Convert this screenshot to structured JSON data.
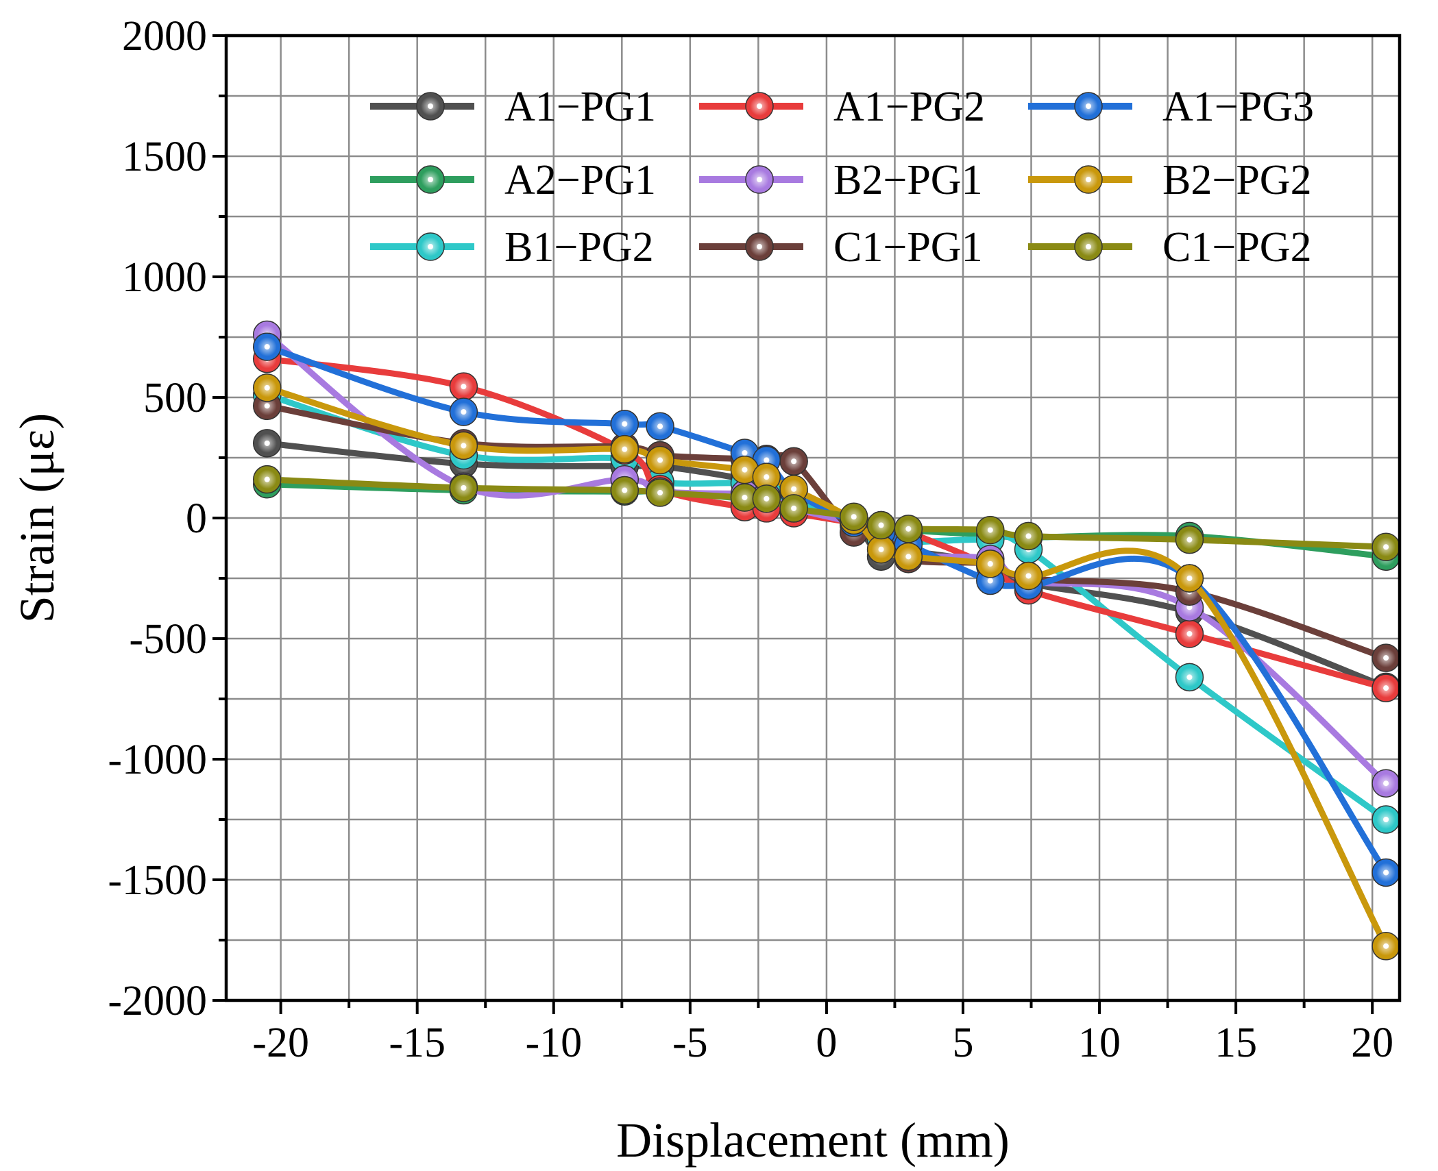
{
  "chart_data": {
    "type": "line",
    "title": "",
    "xlabel": "Displacement (mm)",
    "ylabel": "Strain (με)",
    "xlim": [
      -22,
      21
    ],
    "ylim": [
      -2000,
      2000
    ],
    "xticks": [
      -20,
      -15,
      -10,
      -5,
      0,
      5,
      10,
      15,
      20
    ],
    "yticks": [
      -2000,
      -1500,
      -1000,
      -500,
      0,
      500,
      1000,
      1500,
      2000
    ],
    "grid": true,
    "legend_position": "top",
    "series": [
      {
        "name": "A1−PG1",
        "color": "#505050",
        "x": [
          -20.5,
          -13.3,
          -7.4,
          -6.1,
          -3.0,
          -2.2,
          -1.2,
          1.0,
          2.0,
          3.0,
          6.0,
          7.4,
          13.3,
          20.5
        ],
        "y": [
          310,
          225,
          215,
          215,
          160,
          120,
          90,
          -30,
          -160,
          -140,
          -190,
          -270,
          -390,
          -700
        ]
      },
      {
        "name": "A2−PG1",
        "color": "#2e9e5e",
        "x": [
          -20.5,
          -13.3,
          -7.4,
          -6.1,
          -3.0,
          -2.2,
          -1.2,
          1.0,
          2.0,
          3.0,
          6.0,
          7.4,
          13.3,
          20.5
        ],
        "y": [
          140,
          115,
          110,
          110,
          80,
          70,
          40,
          0,
          -30,
          -50,
          -70,
          -80,
          -75,
          -160
        ]
      },
      {
        "name": "B1−PG2",
        "color": "#2ec8c8",
        "x": [
          -20.5,
          -13.3,
          -7.4,
          -6.1,
          -3.0,
          -2.2,
          -1.2,
          1.0,
          2.0,
          3.0,
          6.0,
          7.4,
          13.3,
          20.5
        ],
        "y": [
          510,
          260,
          245,
          150,
          145,
          120,
          70,
          -20,
          -90,
          -100,
          -90,
          -130,
          -660,
          -1250
        ]
      },
      {
        "name": "A1−PG2",
        "color": "#e83c3c",
        "x": [
          -20.5,
          -13.3,
          -7.4,
          -6.1,
          -3.0,
          -2.2,
          -1.2,
          1.0,
          2.0,
          3.0,
          6.0,
          7.4,
          13.3,
          20.5
        ],
        "y": [
          660,
          545,
          280,
          120,
          45,
          40,
          20,
          -20,
          -40,
          -60,
          -200,
          -300,
          -480,
          -705
        ]
      },
      {
        "name": "B2−PG1",
        "color": "#a87ae0",
        "x": [
          -20.5,
          -13.3,
          -7.4,
          -6.1,
          -3.0,
          -2.2,
          -1.2,
          1.0,
          2.0,
          3.0,
          6.0,
          7.4,
          13.3,
          20.5
        ],
        "y": [
          760,
          130,
          160,
          110,
          100,
          90,
          40,
          -20,
          -60,
          -150,
          -170,
          -260,
          -370,
          -1100
        ]
      },
      {
        "name": "C1−PG1",
        "color": "#6b3f3a",
        "x": [
          -20.5,
          -13.3,
          -7.4,
          -6.1,
          -3.0,
          -2.2,
          -1.2,
          1.0,
          2.0,
          3.0,
          6.0,
          7.4,
          13.3,
          20.5
        ],
        "y": [
          465,
          310,
          295,
          260,
          245,
          245,
          235,
          -60,
          -40,
          -170,
          -190,
          -250,
          -305,
          -580
        ]
      },
      {
        "name": "A1−PG3",
        "color": "#2270d8",
        "x": [
          -20.5,
          -13.3,
          -7.4,
          -6.1,
          -3.0,
          -2.2,
          -1.2,
          1.0,
          2.0,
          3.0,
          6.0,
          7.4,
          13.3,
          20.5
        ],
        "y": [
          710,
          440,
          390,
          380,
          270,
          240,
          110,
          -20,
          -60,
          -110,
          -260,
          -280,
          -250,
          -1470
        ]
      },
      {
        "name": "B2−PG2",
        "color": "#c9980c",
        "x": [
          -20.5,
          -13.3,
          -7.4,
          -6.1,
          -3.0,
          -2.2,
          -1.2,
          1.0,
          2.0,
          3.0,
          6.0,
          7.4,
          13.3,
          20.5
        ],
        "y": [
          540,
          300,
          285,
          240,
          200,
          170,
          120,
          -10,
          -130,
          -160,
          -190,
          -240,
          -250,
          -1775
        ]
      },
      {
        "name": "C1−PG2",
        "color": "#8a8a14",
        "x": [
          -20.5,
          -13.3,
          -7.4,
          -6.1,
          -3.0,
          -2.2,
          -1.2,
          1.0,
          2.0,
          3.0,
          6.0,
          7.4,
          13.3,
          20.5
        ],
        "y": [
          160,
          125,
          115,
          105,
          85,
          80,
          40,
          5,
          -30,
          -45,
          -50,
          -75,
          -90,
          -120
        ]
      }
    ]
  }
}
